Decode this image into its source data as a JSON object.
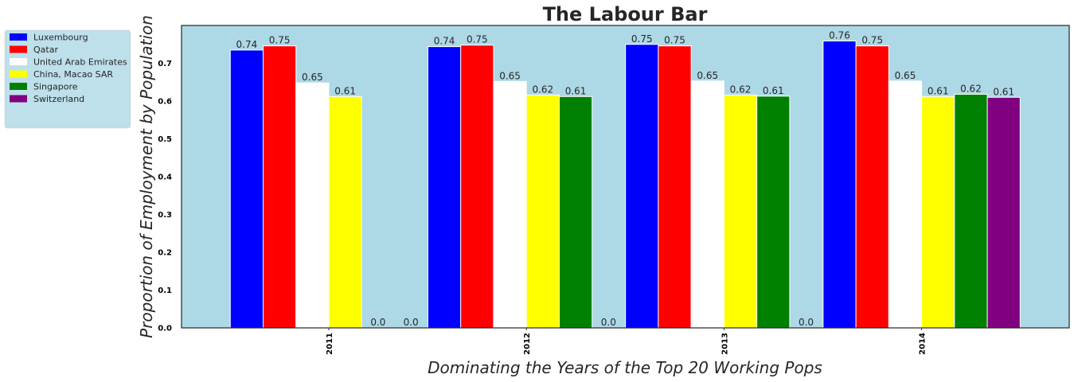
{
  "chart_data": {
    "type": "bar",
    "title": "The Labour Bar",
    "xlabel": "Dominating the Years of the Top 20 Working Pops",
    "ylabel": "Proportion of Employment by Population",
    "categories": [
      "2011",
      "2012",
      "2013",
      "2014"
    ],
    "yticks": [
      "0.0",
      "0.1",
      "0.2",
      "0.3",
      "0.4",
      "0.5",
      "0.6",
      "0.7"
    ],
    "ylim": [
      0,
      0.8
    ],
    "grid": false,
    "legend_position": "upper-left, outside plot",
    "plot_background": "#add8e6",
    "series": [
      {
        "name": "Luxembourg",
        "color": "#0000ff",
        "values": [
          0.735,
          0.744,
          0.75,
          0.759
        ],
        "labels": [
          "0.74",
          "0.74",
          "0.75",
          "0.76"
        ]
      },
      {
        "name": "Qatar",
        "color": "#ff0000",
        "values": [
          0.746,
          0.748,
          0.746,
          0.746
        ],
        "labels": [
          "0.75",
          "0.75",
          "0.75",
          "0.75"
        ]
      },
      {
        "name": "United Arab Emirates",
        "color": "#ffffff",
        "values": [
          0.648,
          0.652,
          0.653,
          0.653
        ],
        "labels": [
          "0.65",
          "0.65",
          "0.65",
          "0.65"
        ]
      },
      {
        "name": "China, Macao SAR",
        "color": "#ffff00",
        "values": [
          0.612,
          0.616,
          0.616,
          0.612
        ],
        "labels": [
          "0.61",
          "0.62",
          "0.62",
          "0.61"
        ]
      },
      {
        "name": "Singapore",
        "color": "#008000",
        "values": [
          0.0,
          0.612,
          0.613,
          0.618
        ],
        "labels": [
          "0.0",
          "0.61",
          "0.61",
          "0.62"
        ]
      },
      {
        "name": "Switzerland",
        "color": "#800080",
        "values": [
          0.0,
          0.0,
          0.0,
          0.61
        ],
        "labels": [
          "0.0",
          "0.0",
          "0.0",
          "0.61"
        ]
      }
    ]
  }
}
